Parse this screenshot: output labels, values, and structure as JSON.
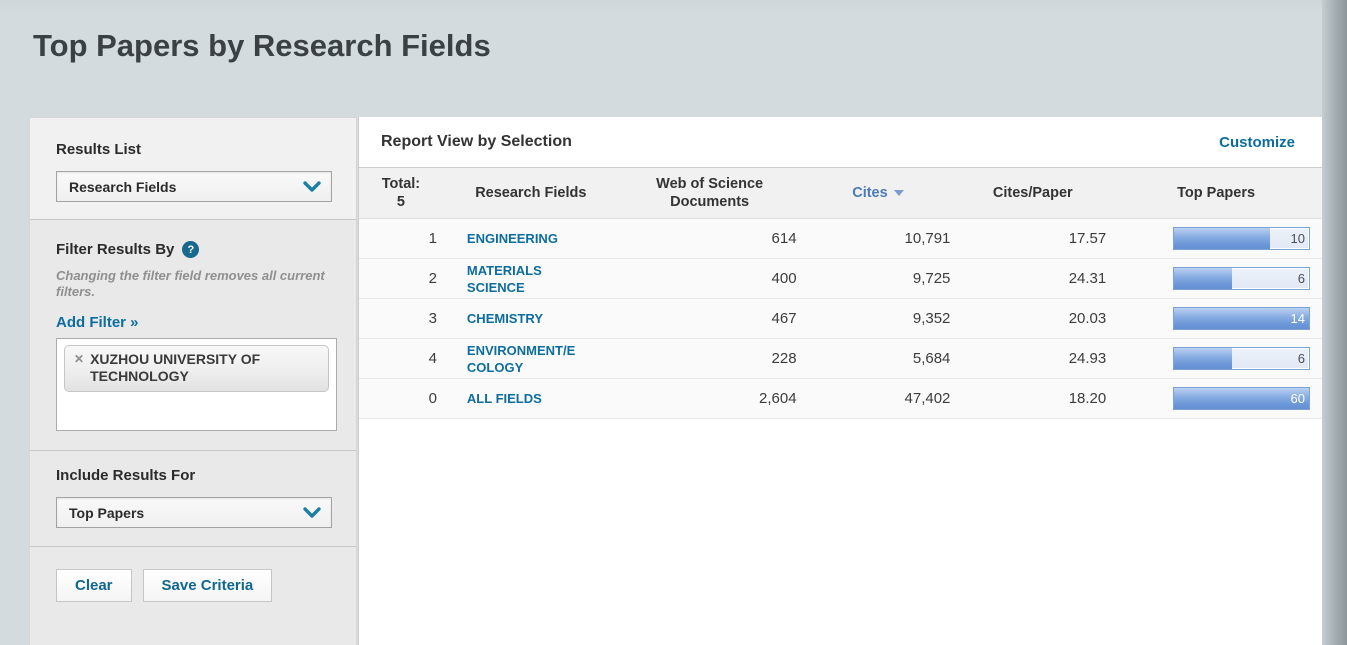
{
  "page": {
    "title": "Top Papers by Research Fields"
  },
  "colors": {
    "accent_teal": "#0d6d9e",
    "sort_blue": "#4b7cb8",
    "bar_fill_blue": "#6b97d8",
    "bar_track": "#e7edf7",
    "page_background": "#d4dbde"
  },
  "sidebar": {
    "results_list": {
      "label": "Results List",
      "selected": "Research Fields"
    },
    "filter": {
      "label": "Filter Results By",
      "help_icon": "question-mark",
      "note": "Changing the filter field removes all current filters.",
      "add_filter_label": "Add Filter »",
      "chips": [
        {
          "remove_icon": "x",
          "text": "XUZHOU UNIVERSITY OF TECHNOLOGY"
        }
      ]
    },
    "include_results": {
      "label": "Include Results For",
      "selected": "Top Papers"
    },
    "buttons": {
      "clear": "Clear",
      "save": "Save Criteria"
    }
  },
  "report": {
    "heading": "Report View by Selection",
    "customize": "Customize",
    "table": {
      "headers": [
        {
          "lines": [
            "Total:",
            "5"
          ],
          "sorted": false,
          "interactable": false
        },
        {
          "lines": [
            "Research Fields"
          ],
          "sorted": false,
          "interactable": true
        },
        {
          "lines": [
            "Web of Science",
            "Documents"
          ],
          "sorted": false,
          "interactable": true
        },
        {
          "lines": [
            "Cites"
          ],
          "sorted": true,
          "interactable": true
        },
        {
          "lines": [
            "Cites/Paper"
          ],
          "sorted": false,
          "interactable": true
        },
        {
          "lines": [
            "Top Papers"
          ],
          "sorted": false,
          "interactable": true
        }
      ],
      "rows": [
        {
          "rank": "1",
          "field_lines": [
            "ENGINEERING"
          ],
          "wos_docs": "614",
          "cites": "10,791",
          "cites_per_paper": "17.57",
          "top_papers": {
            "value": "10",
            "fill_pct": 71
          }
        },
        {
          "rank": "2",
          "field_lines": [
            "MATERIALS",
            "SCIENCE"
          ],
          "wos_docs": "400",
          "cites": "9,725",
          "cites_per_paper": "24.31",
          "top_papers": {
            "value": "6",
            "fill_pct": 43
          }
        },
        {
          "rank": "3",
          "field_lines": [
            "CHEMISTRY"
          ],
          "wos_docs": "467",
          "cites": "9,352",
          "cites_per_paper": "20.03",
          "top_papers": {
            "value": "14",
            "fill_pct": 100
          }
        },
        {
          "rank": "4",
          "field_lines": [
            "ENVIRONMENT/E",
            "COLOGY"
          ],
          "wos_docs": "228",
          "cites": "5,684",
          "cites_per_paper": "24.93",
          "top_papers": {
            "value": "6",
            "fill_pct": 43
          }
        },
        {
          "rank": "0",
          "field_lines": [
            "ALL FIELDS"
          ],
          "wos_docs": "2,604",
          "cites": "47,402",
          "cites_per_paper": "18.20",
          "top_papers": {
            "value": "60",
            "fill_pct": 100
          }
        }
      ]
    }
  }
}
